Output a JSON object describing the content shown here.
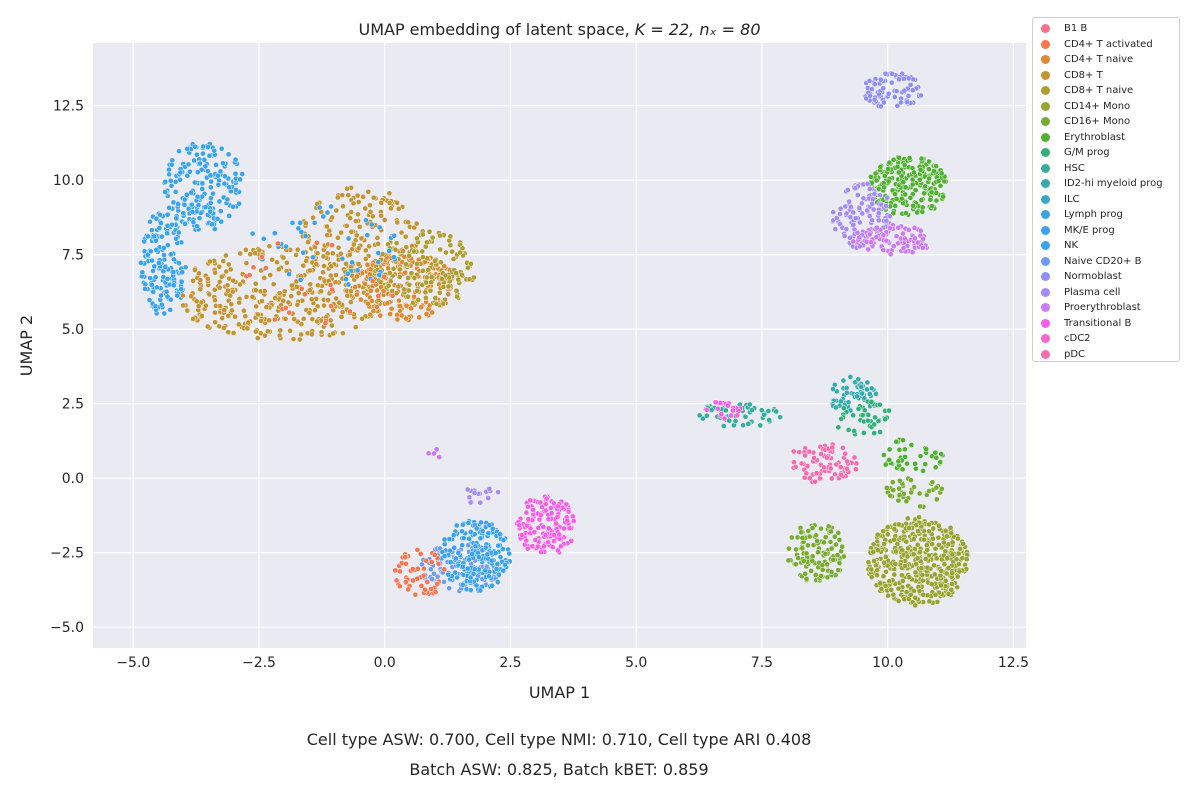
{
  "chart_data": {
    "type": "scatter",
    "title_main": "UMAP embedding of latent space, ",
    "title_math": "K = 22, nₓ = 80",
    "xlabel": "UMAP 1",
    "ylabel": "UMAP 2",
    "xlim": [
      -5.8,
      12.75
    ],
    "ylim": [
      -5.7,
      14.6
    ],
    "xticks": [
      -5.0,
      -2.5,
      0.0,
      2.5,
      5.0,
      7.5,
      10.0,
      12.5
    ],
    "xtick_labels": [
      "−5.0",
      "−2.5",
      "0.0",
      "2.5",
      "5.0",
      "7.5",
      "10.0",
      "12.5"
    ],
    "yticks": [
      -5.0,
      -2.5,
      0.0,
      2.5,
      5.0,
      7.5,
      10.0,
      12.5
    ],
    "ytick_labels": [
      "−5.0",
      "−2.5",
      "0.0",
      "2.5",
      "5.0",
      "7.5",
      "10.0",
      "12.5"
    ],
    "grid": true,
    "legend_position": "outside-right",
    "style": {
      "background": "#eaeaf2",
      "grid": "#ffffff",
      "point_edge": "#ffffff"
    },
    "series": [
      {
        "name": "B1 B",
        "color": "#f77189"
      },
      {
        "name": "CD4+ T activated",
        "color": "#f7754f"
      },
      {
        "name": "CD4+ T naive",
        "color": "#dc8932"
      },
      {
        "name": "CD8+ T",
        "color": "#c39532"
      },
      {
        "name": "CD8+ T naive",
        "color": "#ae9d31"
      },
      {
        "name": "CD14+ Mono",
        "color": "#97a431"
      },
      {
        "name": "CD16+ Mono",
        "color": "#77ab31"
      },
      {
        "name": "Erythroblast",
        "color": "#50b131"
      },
      {
        "name": "G/M prog",
        "color": "#33b07a"
      },
      {
        "name": "HSC",
        "color": "#35ad9c"
      },
      {
        "name": "ID2-hi myeloid prog",
        "color": "#36abae"
      },
      {
        "name": "ILC",
        "color": "#38a9c5"
      },
      {
        "name": "Lymph prog",
        "color": "#3aa5df"
      },
      {
        "name": "MK/E prog",
        "color": "#3ba3ec"
      },
      {
        "name": "NK",
        "color": "#3ba3ec"
      },
      {
        "name": "Naive CD20+ B",
        "color": "#6e9bf4"
      },
      {
        "name": "Normoblast",
        "color": "#8e8ff5"
      },
      {
        "name": "Plasma cell",
        "color": "#a48cf4"
      },
      {
        "name": "Proerythroblast",
        "color": "#cc7af4"
      },
      {
        "name": "Transitional B",
        "color": "#f45fe6"
      },
      {
        "name": "cDC2",
        "color": "#f565cc"
      },
      {
        "name": "pDC",
        "color": "#f66bad"
      }
    ],
    "clusters": [
      {
        "series": "MK/E prog",
        "cx": -3.6,
        "cy": 9.8,
        "rx": 0.8,
        "ry": 1.5,
        "n": 200
      },
      {
        "series": "MK/E prog",
        "cx": -4.4,
        "cy": 7.2,
        "rx": 0.45,
        "ry": 1.8,
        "n": 160
      },
      {
        "series": "CD8+ T",
        "cx": -2.0,
        "cy": 6.2,
        "rx": 2.2,
        "ry": 1.6,
        "n": 380
      },
      {
        "series": "CD8+ T",
        "cx": -0.5,
        "cy": 8.0,
        "rx": 1.2,
        "ry": 1.8,
        "n": 180
      },
      {
        "series": "CD4+ T naive",
        "cx": 0.4,
        "cy": 6.5,
        "rx": 1.0,
        "ry": 1.2,
        "n": 180
      },
      {
        "series": "CD8+ T naive",
        "cx": 0.8,
        "cy": 7.0,
        "rx": 1.0,
        "ry": 1.3,
        "n": 160
      },
      {
        "series": "NK",
        "cx": -1.2,
        "cy": 7.8,
        "rx": 1.5,
        "ry": 1.5,
        "n": 45
      },
      {
        "series": "CD4+ T activated",
        "cx": -1.5,
        "cy": 6.5,
        "rx": 1.8,
        "ry": 1.5,
        "n": 25
      },
      {
        "series": "Normoblast",
        "cx": 10.1,
        "cy": 13.0,
        "rx": 0.6,
        "ry": 0.6,
        "n": 80
      },
      {
        "series": "Erythroblast",
        "cx": 10.4,
        "cy": 9.8,
        "rx": 0.8,
        "ry": 1.0,
        "n": 230
      },
      {
        "series": "Plasma cell",
        "cx": 9.5,
        "cy": 8.8,
        "rx": 0.6,
        "ry": 1.1,
        "n": 120
      },
      {
        "series": "Proerythroblast",
        "cx": 10.1,
        "cy": 8.0,
        "rx": 0.8,
        "ry": 0.5,
        "n": 90
      },
      {
        "series": "HSC",
        "cx": 7.0,
        "cy": 2.1,
        "rx": 0.9,
        "ry": 0.4,
        "n": 60
      },
      {
        "series": "ID2-hi myeloid prog",
        "cx": 9.3,
        "cy": 2.8,
        "rx": 0.5,
        "ry": 0.6,
        "n": 55
      },
      {
        "series": "Erythroblast",
        "cx": 10.5,
        "cy": 0.8,
        "rx": 0.7,
        "ry": 0.6,
        "n": 40
      },
      {
        "series": "G/M prog",
        "cx": 9.5,
        "cy": 2.0,
        "rx": 0.6,
        "ry": 0.6,
        "n": 45
      },
      {
        "series": "Transitional B",
        "cx": 6.8,
        "cy": 2.3,
        "rx": 0.4,
        "ry": 0.3,
        "n": 20
      },
      {
        "series": "pDC",
        "cx": 8.7,
        "cy": 0.5,
        "rx": 0.7,
        "ry": 0.7,
        "n": 80
      },
      {
        "series": "CD14+ Mono",
        "cx": 10.6,
        "cy": -2.8,
        "rx": 1.0,
        "ry": 1.5,
        "n": 450
      },
      {
        "series": "CD16+ Mono",
        "cx": 8.6,
        "cy": -2.5,
        "rx": 0.6,
        "ry": 1.0,
        "n": 120
      },
      {
        "series": "CD16+ Mono",
        "cx": 10.5,
        "cy": -0.5,
        "rx": 0.6,
        "ry": 0.5,
        "n": 40
      },
      {
        "series": "Naive CD20+ B",
        "cx": 1.5,
        "cy": -3.0,
        "rx": 0.8,
        "ry": 0.8,
        "n": 120
      },
      {
        "series": "NK",
        "cx": 1.8,
        "cy": -2.6,
        "rx": 0.7,
        "ry": 1.2,
        "n": 180
      },
      {
        "series": "CD4+ T activated",
        "cx": 0.7,
        "cy": -3.2,
        "rx": 0.5,
        "ry": 0.8,
        "n": 50
      },
      {
        "series": "Transitional B",
        "cx": 3.2,
        "cy": -1.6,
        "rx": 0.6,
        "ry": 1.0,
        "n": 140
      },
      {
        "series": "Plasma cell",
        "cx": 1.9,
        "cy": -0.6,
        "rx": 0.4,
        "ry": 0.3,
        "n": 15
      },
      {
        "series": "Proerythroblast",
        "cx": 1.0,
        "cy": 0.8,
        "rx": 0.15,
        "ry": 0.25,
        "n": 4
      }
    ]
  },
  "metrics": {
    "line1": "Cell type ASW: 0.700, Cell type NMI: 0.710, Cell type ARI 0.408",
    "line2": "Batch ASW: 0.825, Batch kBET: 0.859"
  }
}
